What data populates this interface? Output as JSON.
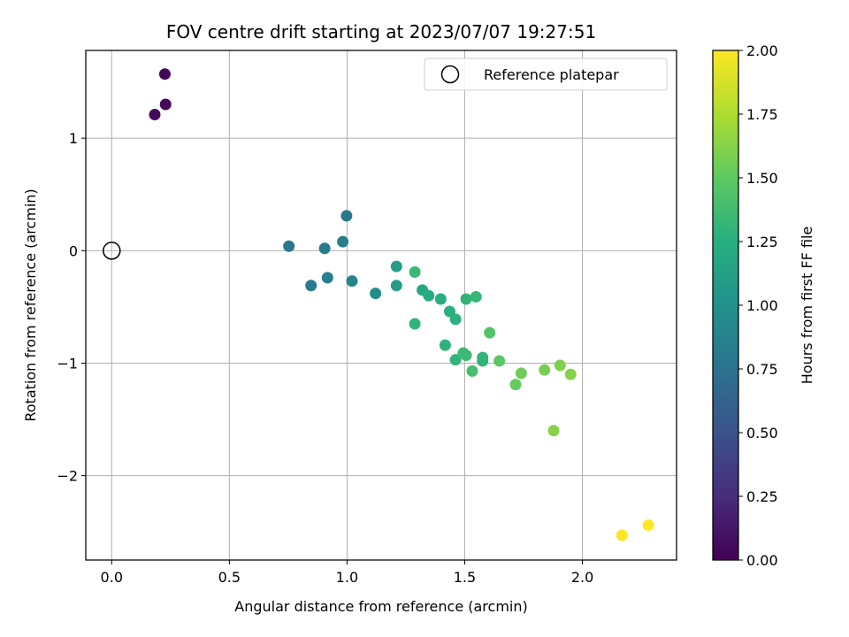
{
  "chart_data": {
    "type": "scatter",
    "title": "FOV centre drift starting at 2023/07/07 19:27:51",
    "xlabel": "Angular distance from reference (arcmin)",
    "ylabel": "Rotation from reference (arcmin)",
    "xlim": [
      -0.11,
      2.4
    ],
    "ylim": [
      -2.75,
      1.78
    ],
    "xticks": [
      0.0,
      0.5,
      1.0,
      1.5,
      2.0
    ],
    "xtick_labels": [
      "0.0",
      "0.5",
      "1.0",
      "1.5",
      "2.0"
    ],
    "yticks": [
      -2,
      -1,
      0,
      1
    ],
    "ytick_labels": [
      "−2",
      "−1",
      "0",
      "1"
    ],
    "grid": true,
    "legend": {
      "position": "top-right",
      "entries": [
        "Reference platepar"
      ]
    },
    "reference_point": {
      "name": "Reference platepar",
      "x": 0.0,
      "y": 0.0,
      "marker": "open-circle",
      "color": "#000000"
    },
    "colormap": "viridis",
    "colorbar": {
      "label": "Hours from first FF file",
      "range": [
        0.0,
        2.0
      ],
      "ticks": [
        0.0,
        0.25,
        0.5,
        0.75,
        1.0,
        1.25,
        1.5,
        1.75,
        2.0
      ],
      "tick_labels": [
        "0.00",
        "0.25",
        "0.50",
        "0.75",
        "1.00",
        "1.25",
        "1.50",
        "1.75",
        "2.00"
      ]
    },
    "points": [
      {
        "x": 0.226,
        "y": 1.57,
        "hours": 0.02
      },
      {
        "x": 0.229,
        "y": 1.3,
        "hours": 0.03
      },
      {
        "x": 0.183,
        "y": 1.21,
        "hours": 0.04
      },
      {
        "x": 0.753,
        "y": 0.04,
        "hours": 0.8
      },
      {
        "x": 0.998,
        "y": 0.31,
        "hours": 0.8
      },
      {
        "x": 0.905,
        "y": 0.02,
        "hours": 0.83
      },
      {
        "x": 0.982,
        "y": 0.08,
        "hours": 0.85
      },
      {
        "x": 0.847,
        "y": -0.31,
        "hours": 0.82
      },
      {
        "x": 0.917,
        "y": -0.24,
        "hours": 0.86
      },
      {
        "x": 1.021,
        "y": -0.27,
        "hours": 0.9
      },
      {
        "x": 1.121,
        "y": -0.38,
        "hours": 0.96
      },
      {
        "x": 1.21,
        "y": -0.14,
        "hours": 1.12
      },
      {
        "x": 1.21,
        "y": -0.31,
        "hours": 1.1
      },
      {
        "x": 1.288,
        "y": -0.19,
        "hours": 1.33
      },
      {
        "x": 1.288,
        "y": -0.65,
        "hours": 1.3
      },
      {
        "x": 1.32,
        "y": -0.35,
        "hours": 1.2
      },
      {
        "x": 1.347,
        "y": -0.4,
        "hours": 1.22
      },
      {
        "x": 1.398,
        "y": -0.43,
        "hours": 1.24
      },
      {
        "x": 1.436,
        "y": -0.54,
        "hours": 1.26
      },
      {
        "x": 1.461,
        "y": -0.61,
        "hours": 1.27
      },
      {
        "x": 1.506,
        "y": -0.43,
        "hours": 1.3
      },
      {
        "x": 1.548,
        "y": -0.41,
        "hours": 1.33
      },
      {
        "x": 1.417,
        "y": -0.84,
        "hours": 1.28
      },
      {
        "x": 1.461,
        "y": -0.97,
        "hours": 1.3
      },
      {
        "x": 1.494,
        "y": -0.91,
        "hours": 1.34
      },
      {
        "x": 1.506,
        "y": -0.93,
        "hours": 1.35
      },
      {
        "x": 1.576,
        "y": -0.95,
        "hours": 1.31
      },
      {
        "x": 1.576,
        "y": -0.98,
        "hours": 1.29
      },
      {
        "x": 1.532,
        "y": -1.07,
        "hours": 1.4
      },
      {
        "x": 1.606,
        "y": -0.73,
        "hours": 1.45
      },
      {
        "x": 1.647,
        "y": -0.98,
        "hours": 1.48
      },
      {
        "x": 1.716,
        "y": -1.19,
        "hours": 1.52
      },
      {
        "x": 1.74,
        "y": -1.09,
        "hours": 1.55
      },
      {
        "x": 1.839,
        "y": -1.06,
        "hours": 1.58
      },
      {
        "x": 1.905,
        "y": -1.02,
        "hours": 1.6
      },
      {
        "x": 1.95,
        "y": -1.1,
        "hours": 1.62
      },
      {
        "x": 1.878,
        "y": -1.6,
        "hours": 1.63
      },
      {
        "x": 2.168,
        "y": -2.53,
        "hours": 2.0
      },
      {
        "x": 2.28,
        "y": -2.44,
        "hours": 2.0
      }
    ]
  }
}
